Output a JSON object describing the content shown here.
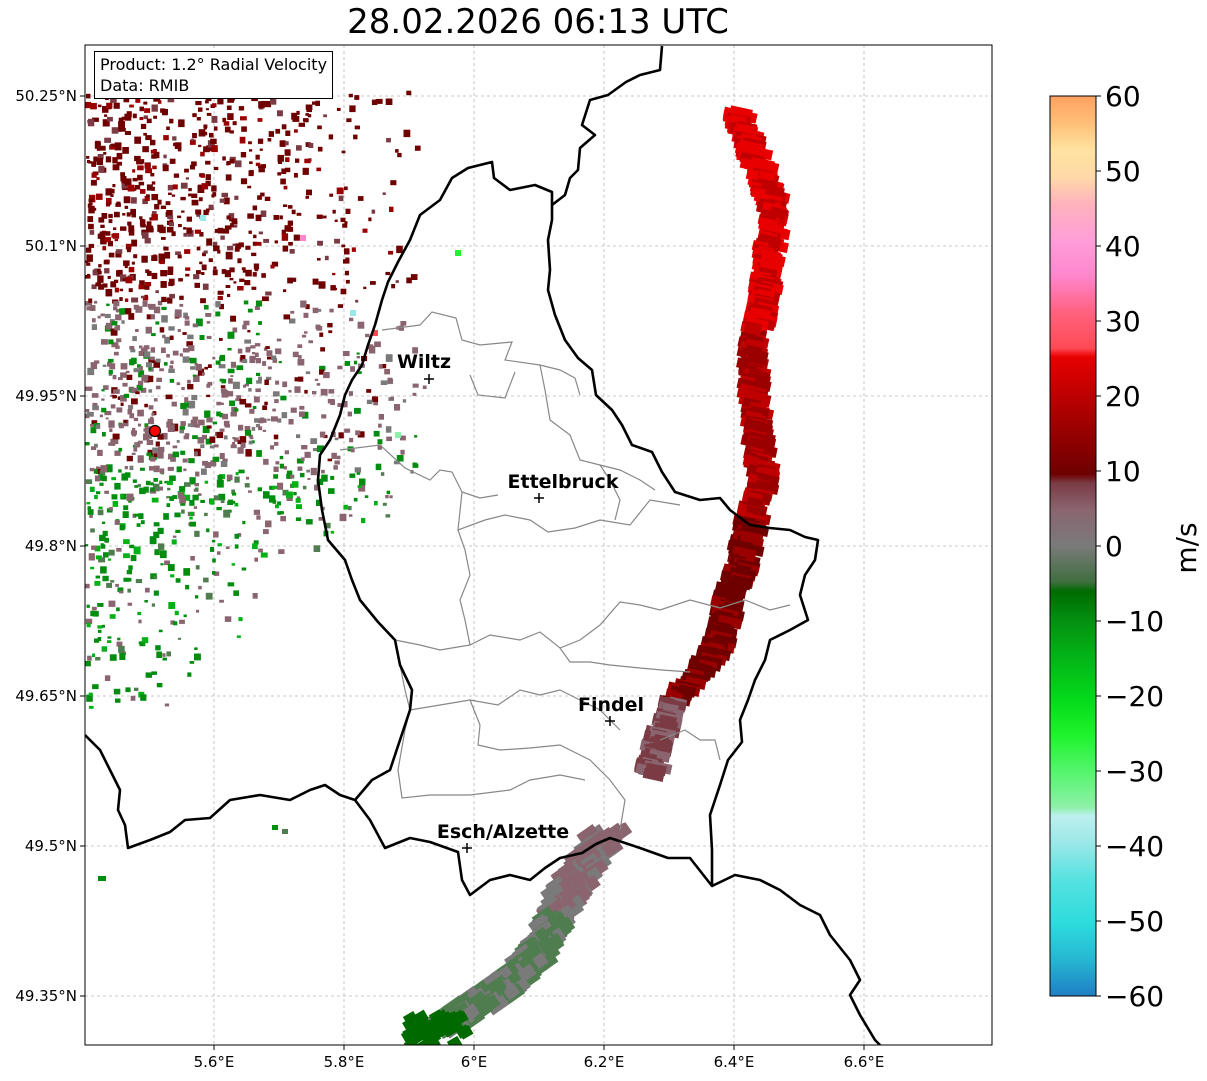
{
  "title": "28.02.2026 06:13 UTC",
  "info_box": {
    "product": "Product: 1.2° Radial Velocity",
    "source": "Data: RMIB"
  },
  "axes": {
    "lon_ticks": [
      "5.6°E",
      "5.8°E",
      "6°E",
      "6.2°E",
      "6.4°E",
      "6.6°E"
    ],
    "lat_ticks": [
      "50.25°N",
      "50.1°N",
      "49.95°N",
      "49.8°N",
      "49.65°N",
      "49.5°N",
      "49.35°N"
    ],
    "grid": true
  },
  "cities": [
    {
      "name": "Wiltz",
      "lon": 5.93,
      "lat": 49.97
    },
    {
      "name": "Ettelbruck",
      "lon": 6.1,
      "lat": 49.85
    },
    {
      "name": "Findel",
      "lon": 6.21,
      "lat": 49.627
    },
    {
      "name": "Esch/Alzette",
      "lon": 5.99,
      "lat": 49.5
    }
  ],
  "radar_site": {
    "lon": 5.51,
    "lat": 49.915
  },
  "colorbar": {
    "unit": "m/s",
    "min": -60,
    "max": 60,
    "tick_labels": [
      "60",
      "50",
      "40",
      "30",
      "20",
      "10",
      "0",
      "−10",
      "−20",
      "−30",
      "−40",
      "−50",
      "−60"
    ],
    "colors": {
      "-60": "#1f7fc4",
      "-55": "#26b6d2",
      "-50": "#2ddbdd",
      "-45": "#56e2e0",
      "-40": "#9be8e8",
      "-35": "#bdf0ef",
      "-32": "#8df0a8",
      "-28": "#54f56c",
      "-25": "#1ef32c",
      "-20": "#04d91a",
      "-15": "#03b116",
      "-10": "#038d10",
      "-7": "#006a00",
      "-3": "#4f7d4f",
      "0": "#7a7a7a",
      "4": "#8a6570",
      "8": "#7a3b44",
      "10": "#6e0000",
      "15": "#9a0000",
      "20": "#c00000",
      "25": "#e80000",
      "28": "#ff4a55",
      "32": "#ff6280",
      "36": "#ff86cc",
      "40": "#ff9ed8",
      "44": "#ffb3bc",
      "48": "#ffd9a8",
      "52": "#ffe3a0",
      "56": "#ffbf78",
      "60": "#ffa060"
    }
  }
}
